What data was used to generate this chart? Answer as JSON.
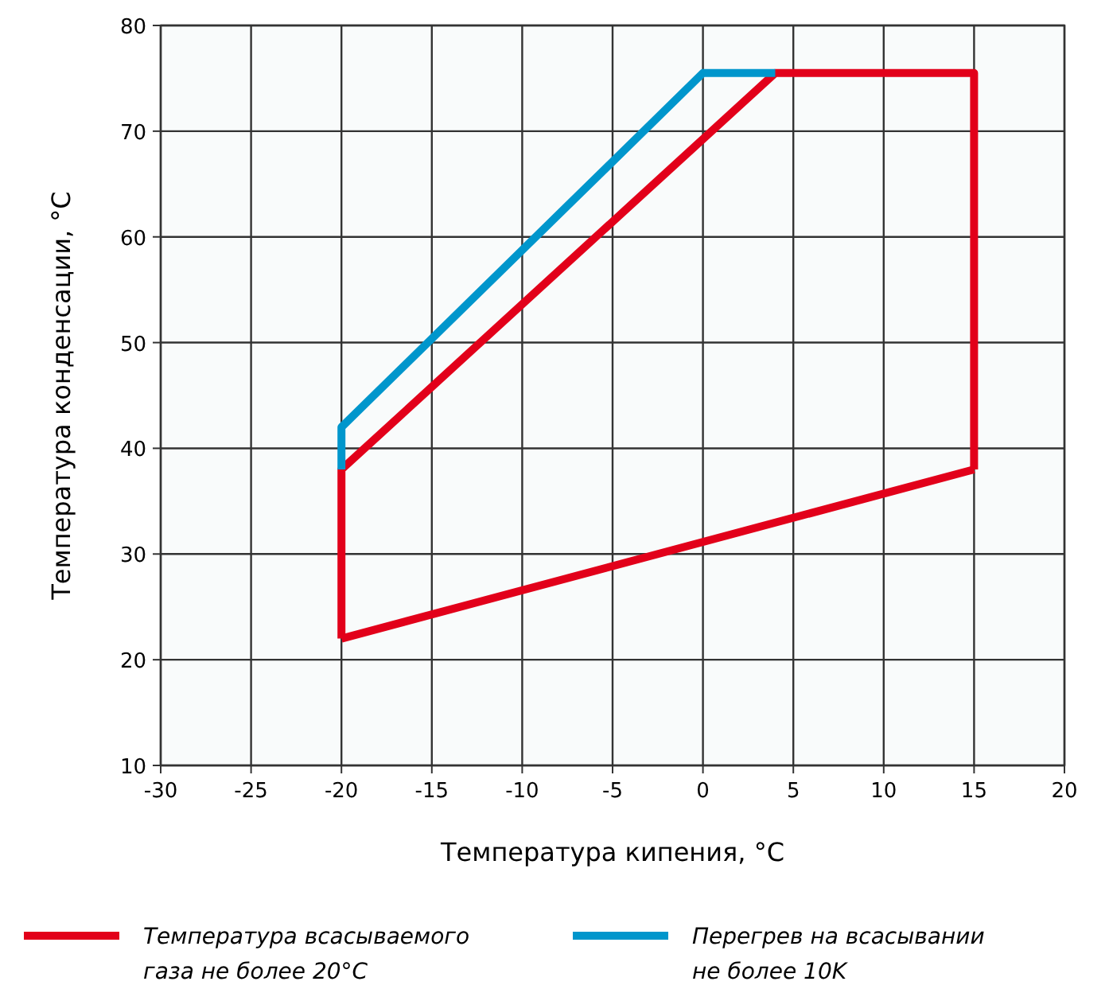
{
  "chart_data": {
    "type": "line",
    "xlabel": "Температура кипения, °C",
    "ylabel": "Температура конденсации, °C",
    "xlim": [
      -30,
      20
    ],
    "xticks": [
      -30,
      -25,
      -20,
      -15,
      -10,
      -5,
      0,
      5,
      10,
      15,
      20
    ],
    "ylim": [
      10,
      80
    ],
    "yticks": [
      10,
      20,
      30,
      40,
      50,
      60,
      70,
      80
    ],
    "grid": true,
    "legend": "bottom",
    "marker": "none",
    "line_style": "solid",
    "series": [
      {
        "name": "Температура всасываемого газа не более 20°C",
        "color": "#e2001a",
        "x": [
          -20,
          -20,
          4,
          15,
          15
        ],
        "values": [
          22,
          38,
          75.5,
          75.5,
          38
        ]
      },
      {
        "color": "#e2001a",
        "x": [
          -20,
          15
        ],
        "values": [
          22,
          38
        ]
      },
      {
        "name": "Перегрев на всасывании не более 10K",
        "color": "#0096cc",
        "x": [
          -20,
          -20,
          0,
          4
        ],
        "values": [
          38,
          42,
          75.5,
          75.5
        ]
      }
    ]
  }
}
